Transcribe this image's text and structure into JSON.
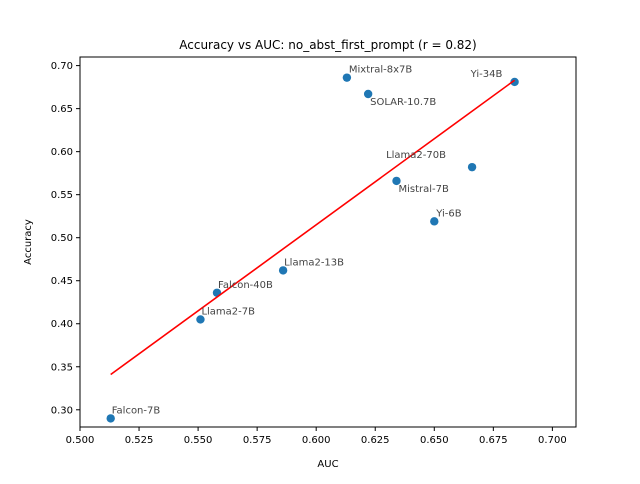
{
  "chart_data": {
    "type": "scatter",
    "title": "Accuracy vs AUC: no_abst_first_prompt (r = 0.82)",
    "xlabel": "AUC",
    "ylabel": "Accuracy",
    "xlim": [
      0.5,
      0.71
    ],
    "ylim": [
      0.28,
      0.71
    ],
    "xticks": [
      "0.500",
      "0.525",
      "0.550",
      "0.575",
      "0.600",
      "0.625",
      "0.650",
      "0.675",
      "0.700"
    ],
    "yticks": [
      "0.30",
      "0.35",
      "0.40",
      "0.45",
      "0.50",
      "0.55",
      "0.60",
      "0.65",
      "0.70"
    ],
    "grid": false,
    "point_color": "#1f77b4",
    "fit_color": "#ff0000",
    "points": [
      {
        "label": "Falcon-7B",
        "x": 0.513,
        "y": 0.29
      },
      {
        "label": "Llama2-7B",
        "x": 0.551,
        "y": 0.405
      },
      {
        "label": "Falcon-40B",
        "x": 0.558,
        "y": 0.436
      },
      {
        "label": "Llama2-13B",
        "x": 0.586,
        "y": 0.462
      },
      {
        "label": "Mixtral-8x7B",
        "x": 0.613,
        "y": 0.686
      },
      {
        "label": "SOLAR-10.7B",
        "x": 0.622,
        "y": 0.667
      },
      {
        "label": "Mistral-7B",
        "x": 0.634,
        "y": 0.566
      },
      {
        "label": "Yi-6B",
        "x": 0.65,
        "y": 0.519
      },
      {
        "label": "Llama2-70B",
        "x": 0.666,
        "y": 0.582
      },
      {
        "label": "Yi-34B",
        "x": 0.684,
        "y": 0.681
      }
    ],
    "fit_line": {
      "x": [
        0.513,
        0.684
      ],
      "y": [
        0.341,
        0.683
      ]
    }
  }
}
